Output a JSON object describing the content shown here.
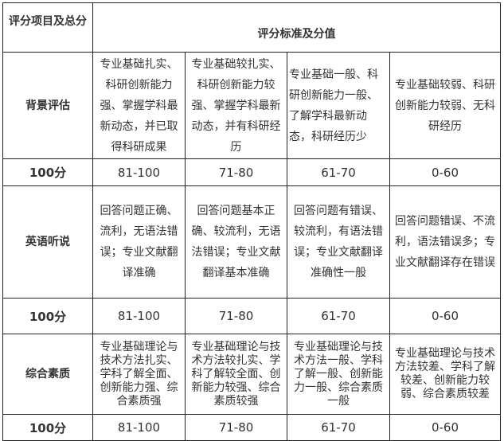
{
  "header": {
    "item": "评分项目及总分",
    "standard": "评分标准及分值"
  },
  "rows": [
    {
      "name": "背景评估",
      "criteria": [
        "专业基础扎实、科研创新能力强、掌握学科最新动态，并已取得科研成果",
        "专业基础较扎实、科研创新能力较强、掌握学科最新动态，并有科研经历",
        "专业基础一般、科研创新能力一般、了解学科最新动态，科研经历少",
        "专业基础较弱、科研创新能力较弱、无科研经历"
      ],
      "total": "100分",
      "scores": [
        "81-100",
        "71-80",
        "61-70",
        "0-60"
      ]
    },
    {
      "name": "英语听说",
      "criteria": [
        "回答问题正确、流利，无语法错误；专业文献翻译准确",
        "回答问题基本正确、较流利，无语法错误；专业文献翻译基本准确",
        "回答问题有错误、较流利，有语法错误；专业文献翻译准确性一般",
        "回答问题错误、不流利，语法错误多；专业文献翻译存在错误"
      ],
      "total": "100分",
      "scores": [
        "81-100",
        "71-80",
        "61-70",
        "0-60"
      ]
    },
    {
      "name": "综合素质",
      "criteria": [
        "专业基础理论与技术方法扎实、学科了解全面、创新能力强、综合素质强",
        "专业基础理论与技术方法较扎实、学科了解较全面、创新能力较强、综合素质较强",
        "专业基础理论与技术方法一般、学科了解一般、创新能力一般、综合素质一般",
        "专业基础理论与技术方法较差、学科了解较差、创新能力较弱、综合素质较差"
      ],
      "total": "100分",
      "scores": [
        "81-100",
        "71-80",
        "61-70",
        "0-60"
      ]
    }
  ]
}
